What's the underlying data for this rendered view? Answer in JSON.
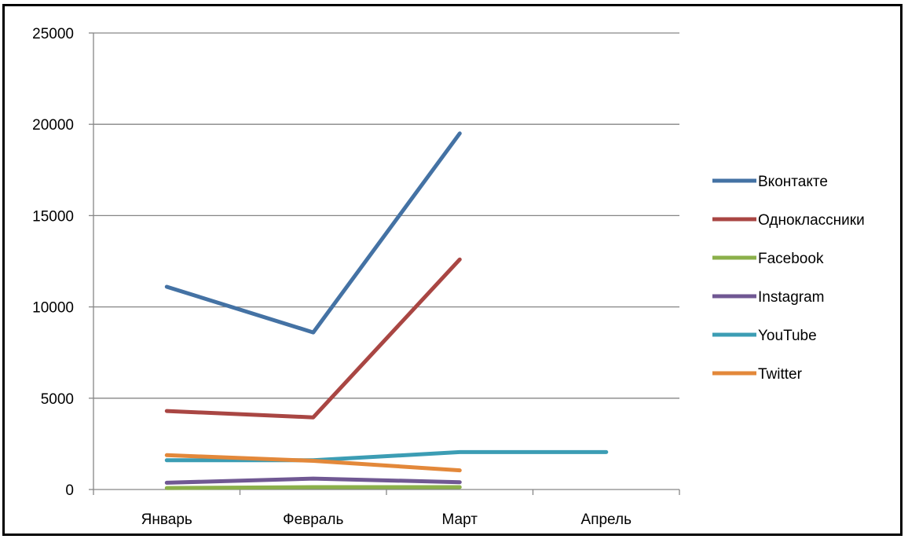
{
  "chart_data": {
    "type": "line",
    "categories": [
      "Январь",
      "Февраль",
      "Март",
      "Апрель"
    ],
    "ylim": [
      0,
      25000
    ],
    "yticks": [
      0,
      5000,
      10000,
      15000,
      20000,
      25000
    ],
    "grid": true,
    "legend_position": "right",
    "series": [
      {
        "name": "Вконтакте",
        "color": "#4472A4",
        "values": [
          11100,
          8600,
          19500,
          null
        ]
      },
      {
        "name": "Одноклассники",
        "color": "#A94643",
        "values": [
          4300,
          3950,
          12600,
          null
        ]
      },
      {
        "name": "Facebook",
        "color": "#8BB04A",
        "values": [
          80,
          130,
          130,
          null
        ]
      },
      {
        "name": "Instagram",
        "color": "#705893",
        "values": [
          370,
          600,
          400,
          null
        ]
      },
      {
        "name": "YouTube",
        "color": "#3C9DB4",
        "values": [
          1600,
          1600,
          2050,
          2050
        ]
      },
      {
        "name": "Twitter",
        "color": "#E3883A",
        "values": [
          1880,
          1570,
          1050,
          null
        ]
      }
    ]
  }
}
